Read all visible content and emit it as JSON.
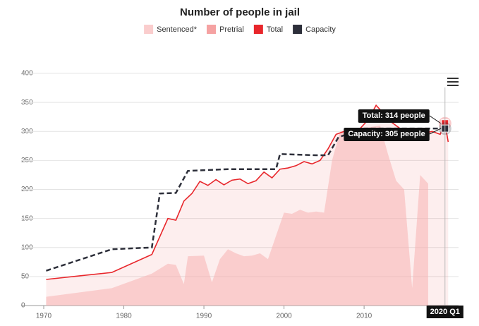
{
  "chart_data": {
    "type": "line",
    "title": "Number of people in jail",
    "series": [
      {
        "name": "Sentenced*",
        "color": "#f9c0c0",
        "style": "area",
        "x": [
          1970.3,
          1978.5,
          1983.5,
          1985.5,
          1986.5,
          1987.5,
          1988,
          1990,
          1991,
          1992,
          1993,
          1994,
          1995,
          1996,
          1997,
          1998,
          1999,
          2000,
          2001,
          2002,
          2003,
          2004,
          2005,
          2006,
          2007,
          2012,
          2013,
          2014,
          2015,
          2016,
          2017,
          2018
        ],
        "values": [
          15,
          30,
          55,
          72,
          70,
          37,
          85,
          86,
          40,
          80,
          97,
          90,
          85,
          86,
          90,
          80,
          120,
          160,
          158,
          165,
          160,
          162,
          160,
          250,
          300,
          310,
          260,
          215,
          200,
          30,
          225,
          210
        ]
      },
      {
        "name": "Pretrial",
        "color": "#f28b8b",
        "style": "area"
      },
      {
        "name": "Total",
        "color": "#e8262b",
        "style": "line",
        "x": [
          1970.3,
          1978.5,
          1983.5,
          1985.5,
          1986.5,
          1987.5,
          1988.5,
          1989.5,
          1990.5,
          1991.5,
          1992.5,
          1993.5,
          1994.5,
          1995.5,
          1996.5,
          1997.5,
          1998.5,
          1999.5,
          2000.5,
          2001.5,
          2002.5,
          2003.5,
          2004.5,
          2005.5,
          2006.5,
          2007.5,
          2008.5,
          2009.5,
          2010.5,
          2011.5,
          2012.5,
          2013.5,
          2014.5,
          2015.5,
          2016.5,
          2017.5,
          2018.5,
          2019.5,
          2020.1,
          2020.5
        ],
        "values": [
          45,
          57,
          88,
          150,
          147,
          180,
          193,
          214,
          207,
          217,
          208,
          216,
          218,
          210,
          215,
          230,
          220,
          235,
          237,
          241,
          248,
          244,
          250,
          270,
          295,
          300,
          303,
          305,
          320,
          345,
          330,
          315,
          305,
          300,
          292,
          297,
          300,
          295,
          314,
          282
        ]
      },
      {
        "name": "Capacity",
        "color": "#2d2f3a",
        "style": "dashed",
        "x": [
          1970.3,
          1978.5,
          1983.5,
          1984.5,
          1986.5,
          1988,
          1993,
          1999,
          1999.5,
          2004,
          2005.5,
          2006.8,
          2010,
          2020.1
        ],
        "values": [
          60,
          97,
          100,
          193,
          194,
          232,
          235,
          235,
          261,
          259,
          259,
          290,
          305,
          305
        ]
      }
    ],
    "xlim": [
      1970,
      2021
    ],
    "xticks": [
      1970,
      1980,
      1990,
      2000,
      2010
    ],
    "ylim": [
      0,
      400
    ],
    "yticks": [
      0,
      50,
      100,
      150,
      200,
      250,
      300,
      350,
      400
    ],
    "grid": true,
    "annotations": [
      {
        "text": "Total: 314 people",
        "x": 2020.1,
        "y": 314,
        "series": 2
      },
      {
        "text": "Capacity: 305 people",
        "x": 2020.1,
        "y": 305,
        "series": 3
      },
      {
        "text": "2020 Q1",
        "x": 2020.1
      }
    ]
  }
}
